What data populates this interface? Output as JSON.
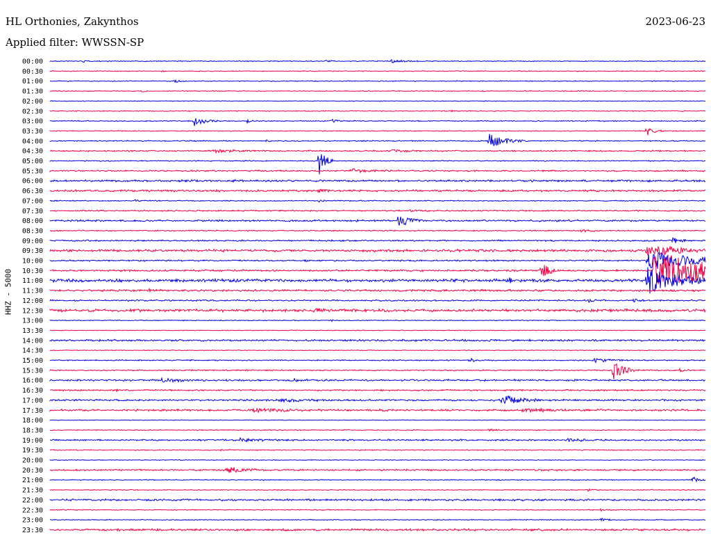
{
  "header": {
    "station": "HL Orthonies, Zakynthos",
    "filter": "Applied filter: WWSSN-SP",
    "date": "2023-06-23"
  },
  "channel_label": "HHZ - 5000",
  "colors": {
    "even_row": "#0000dd",
    "odd_row": "#ee0044",
    "text": "#000000"
  },
  "rows": [
    {
      "time": "00:00",
      "noise": 0.6,
      "events": [
        [
          0.05,
          1.5,
          6
        ],
        [
          0.42,
          2,
          6
        ],
        [
          0.52,
          2.5,
          16
        ]
      ]
    },
    {
      "time": "00:30",
      "noise": 0.6,
      "events": [
        [
          0.17,
          1.5,
          4
        ]
      ]
    },
    {
      "time": "01:00",
      "noise": 0.6,
      "events": [
        [
          0.19,
          2,
          8
        ]
      ]
    },
    {
      "time": "01:30",
      "noise": 0.6,
      "events": [
        [
          0.14,
          1.5,
          4
        ]
      ]
    },
    {
      "time": "02:00",
      "noise": 0.5,
      "events": []
    },
    {
      "time": "02:30",
      "noise": 0.6,
      "events": [
        [
          0.61,
          1.5,
          4
        ]
      ]
    },
    {
      "time": "03:00",
      "noise": 0.7,
      "events": [
        [
          0.22,
          8,
          14
        ],
        [
          0.3,
          2.5,
          6
        ],
        [
          0.43,
          2.5,
          8
        ]
      ]
    },
    {
      "time": "03:30",
      "noise": 0.6,
      "events": [
        [
          0.91,
          7,
          10
        ]
      ]
    },
    {
      "time": "04:00",
      "noise": 0.7,
      "events": [
        [
          0.33,
          2,
          4
        ],
        [
          0.67,
          10,
          22
        ]
      ]
    },
    {
      "time": "04:30",
      "noise": 1.0,
      "events": [
        [
          0.25,
          2,
          30
        ],
        [
          0.52,
          2,
          18
        ]
      ]
    },
    {
      "time": "05:00",
      "noise": 0.7,
      "events": [
        [
          0.41,
          22,
          8
        ]
      ]
    },
    {
      "time": "05:30",
      "noise": 1.0,
      "events": [
        [
          0.46,
          2.5,
          30
        ]
      ]
    },
    {
      "time": "06:00",
      "noise": 1.3,
      "events": [
        [
          0.2,
          2,
          5
        ]
      ]
    },
    {
      "time": "06:30",
      "noise": 1.3,
      "events": [
        [
          0.41,
          3,
          6
        ]
      ]
    },
    {
      "time": "07:00",
      "noise": 0.7,
      "events": [
        [
          0.13,
          2,
          4
        ],
        [
          0.41,
          2,
          6
        ]
      ]
    },
    {
      "time": "07:30",
      "noise": 0.9,
      "events": [
        [
          0.55,
          2,
          6
        ]
      ]
    },
    {
      "time": "08:00",
      "noise": 1.2,
      "events": [
        [
          0.53,
          8,
          18
        ]
      ]
    },
    {
      "time": "08:30",
      "noise": 0.8,
      "events": [
        [
          0.81,
          2,
          14
        ]
      ]
    },
    {
      "time": "09:00",
      "noise": 1.0,
      "events": [
        [
          0.95,
          4,
          8
        ]
      ]
    },
    {
      "time": "09:30",
      "noise": 1.6,
      "events": [
        [
          0.91,
          9,
          40
        ]
      ]
    },
    {
      "time": "10:00",
      "noise": 1.0,
      "events": [
        [
          0.39,
          2,
          4
        ],
        [
          0.91,
          14,
          70
        ]
      ]
    },
    {
      "time": "10:30",
      "noise": 1.2,
      "events": [
        [
          0.75,
          12,
          10
        ],
        [
          0.92,
          28,
          95
        ]
      ]
    },
    {
      "time": "11:00",
      "noise": 2.0,
      "events": [
        [
          0.7,
          4,
          6
        ],
        [
          0.91,
          20,
          40
        ]
      ]
    },
    {
      "time": "11:30",
      "noise": 1.3,
      "events": [
        [
          0.15,
          2,
          6
        ]
      ]
    },
    {
      "time": "12:00",
      "noise": 1.0,
      "events": [
        [
          0.82,
          3,
          8
        ],
        [
          0.89,
          3,
          6
        ]
      ]
    },
    {
      "time": "12:30",
      "noise": 1.8,
      "events": [
        [
          0.4,
          2,
          30
        ]
      ]
    },
    {
      "time": "13:00",
      "noise": 0.6,
      "events": [
        [
          0.43,
          1.5,
          4
        ]
      ]
    },
    {
      "time": "13:30",
      "noise": 0.5,
      "events": []
    },
    {
      "time": "14:00",
      "noise": 1.3,
      "events": []
    },
    {
      "time": "14:30",
      "noise": 0.5,
      "events": []
    },
    {
      "time": "15:00",
      "noise": 0.8,
      "events": [
        [
          0.64,
          3,
          6
        ],
        [
          0.83,
          3,
          20
        ]
      ]
    },
    {
      "time": "15:30",
      "noise": 0.8,
      "events": [
        [
          0.86,
          18,
          12
        ],
        [
          0.96,
          3,
          6
        ]
      ]
    },
    {
      "time": "16:00",
      "noise": 1.2,
      "events": [
        [
          0.17,
          4,
          16
        ],
        [
          0.37,
          2,
          10
        ]
      ]
    },
    {
      "time": "16:30",
      "noise": 1.0,
      "events": [
        [
          0.1,
          2,
          6
        ]
      ]
    },
    {
      "time": "17:00",
      "noise": 1.2,
      "events": [
        [
          0.35,
          2,
          30
        ],
        [
          0.69,
          8,
          22
        ]
      ]
    },
    {
      "time": "17:30",
      "noise": 1.3,
      "events": [
        [
          0.31,
          2,
          40
        ],
        [
          0.72,
          2,
          40
        ]
      ]
    },
    {
      "time": "18:00",
      "noise": 0.4,
      "events": []
    },
    {
      "time": "18:30",
      "noise": 0.6,
      "events": [
        [
          0.67,
          2,
          6
        ]
      ]
    },
    {
      "time": "19:00",
      "noise": 1.1,
      "events": [
        [
          0.29,
          2,
          26
        ],
        [
          0.79,
          2,
          20
        ]
      ]
    },
    {
      "time": "19:30",
      "noise": 0.6,
      "events": [
        [
          0.26,
          2,
          6
        ]
      ]
    },
    {
      "time": "20:00",
      "noise": 0.5,
      "events": []
    },
    {
      "time": "20:30",
      "noise": 1.1,
      "events": [
        [
          0.27,
          4,
          22
        ]
      ]
    },
    {
      "time": "21:00",
      "noise": 0.6,
      "events": [
        [
          0.98,
          5,
          8
        ]
      ]
    },
    {
      "time": "21:30",
      "noise": 0.6,
      "events": [
        [
          0.82,
          2,
          6
        ]
      ]
    },
    {
      "time": "22:00",
      "noise": 1.3,
      "events": []
    },
    {
      "time": "22:30",
      "noise": 0.6,
      "events": [
        [
          0.84,
          2,
          8
        ]
      ]
    },
    {
      "time": "23:00",
      "noise": 0.6,
      "events": [
        [
          0.84,
          2.5,
          8
        ]
      ]
    },
    {
      "time": "23:30",
      "noise": 1.4,
      "events": []
    }
  ]
}
